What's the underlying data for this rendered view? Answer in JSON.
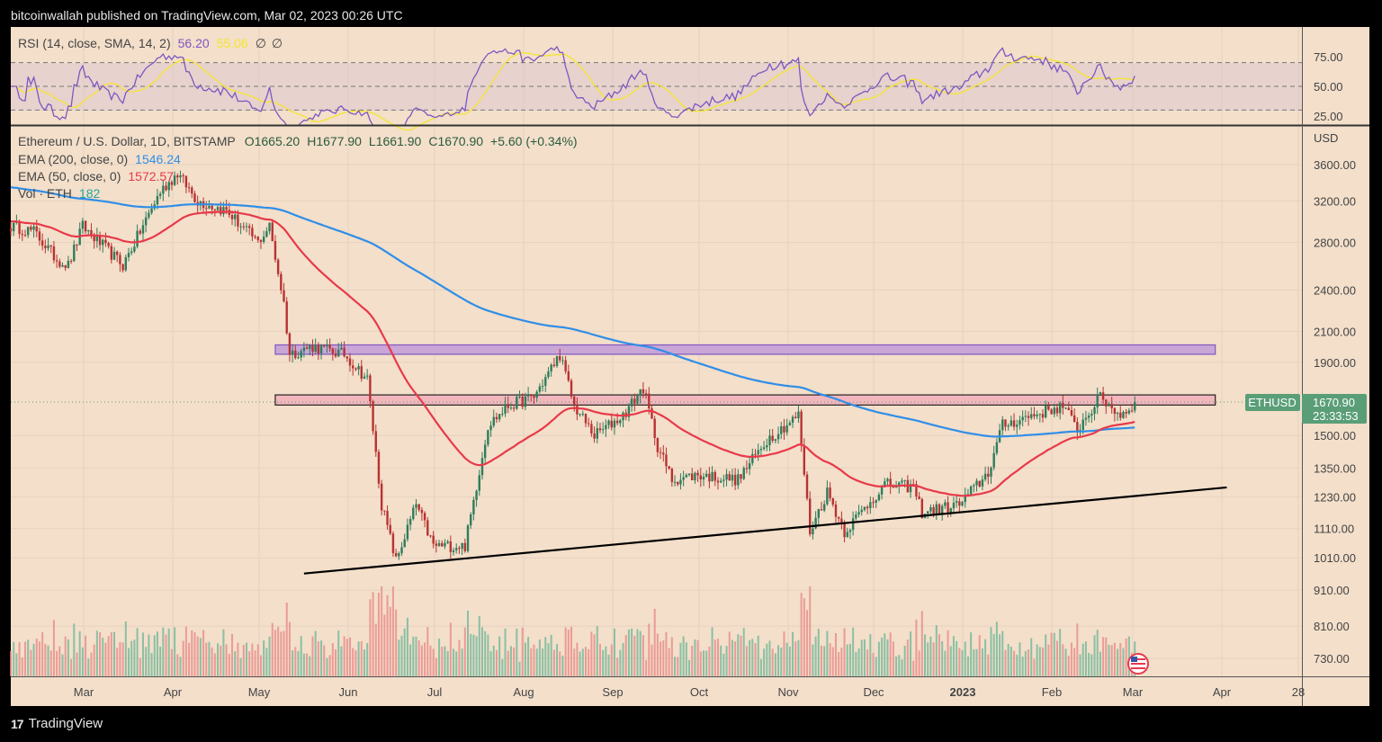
{
  "header": {
    "published": "bitcoinwallah published on TradingView.com, Mar 02, 2023 00:26 UTC"
  },
  "footer": {
    "brand": "TradingView"
  },
  "colors": {
    "background": "#f3dfca",
    "up": "#2e7d5b",
    "down": "#b83232",
    "ema200": "#2f8ee8",
    "ema50": "#e8394a",
    "rsi": "#7e57c2",
    "rsi_sma": "#f5e52e",
    "resistance_zone": "#c9a6d6",
    "support_zone": "#f2b7bd",
    "label_green": "#5a9e78"
  },
  "chart_data": [
    {
      "type": "line",
      "pane": "RSI",
      "legend": {
        "title": "RSI (14, close, SMA, 14, 2)",
        "rsi_value": "56.20",
        "sma_value": "55.06",
        "extra1": "∅",
        "extra2": "∅"
      },
      "y_ticks": [
        "75.00",
        "50.00",
        "25.00"
      ],
      "ylim": [
        17,
        95
      ],
      "bands": [
        30,
        50,
        70
      ]
    },
    {
      "type": "candlestick",
      "pane": "price",
      "legend": {
        "symbol": "Ethereum / U.S. Dollar, 1D, BITSTAMP",
        "open": "O1665.20",
        "high": "H1677.90",
        "low": "L1661.90",
        "close": "C1670.90",
        "change": "+5.60 (+0.34%)",
        "ema200_label": "EMA (200, close, 0)",
        "ema200_value": "1546.24",
        "ema50_label": "EMA (50, close, 0)",
        "ema50_value": "1572.57",
        "vol_label": "Vol · ETH",
        "vol_value": "182"
      },
      "y_scale": "log",
      "y_unit": "USD",
      "y_ticks": [
        "3600.00",
        "3200.00",
        "2800.00",
        "2400.00",
        "2100.00",
        "1900.00",
        "1500.00",
        "1350.00",
        "1230.00",
        "1110.00",
        "1010.00",
        "910.00",
        "810.00",
        "730.00"
      ],
      "x_ticks": [
        "Mar",
        "Apr",
        "May",
        "Jun",
        "Jul",
        "Aug",
        "Sep",
        "Oct",
        "Nov",
        "Dec",
        "2023",
        "Feb",
        "Mar",
        "Apr",
        "28"
      ],
      "last_price_label": {
        "symbol": "ETHUSD",
        "price": "1670.90",
        "countdown": "23:33:53"
      },
      "approx_close_anchors": [
        [
          "2022-02-04",
          2950
        ],
        [
          "2022-02-12",
          2900
        ],
        [
          "2022-02-20",
          2650
        ],
        [
          "2022-02-24",
          2600
        ],
        [
          "2022-03-01",
          2950
        ],
        [
          "2022-03-15",
          2600
        ],
        [
          "2022-03-28",
          3300
        ],
        [
          "2022-04-03",
          3500
        ],
        [
          "2022-04-10",
          3200
        ],
        [
          "2022-04-20",
          3100
        ],
        [
          "2022-05-01",
          2800
        ],
        [
          "2022-05-05",
          2950
        ],
        [
          "2022-05-10",
          2300
        ],
        [
          "2022-05-12",
          1950
        ],
        [
          "2022-05-20",
          2000
        ],
        [
          "2022-05-31",
          1950
        ],
        [
          "2022-06-08",
          1800
        ],
        [
          "2022-06-13",
          1200
        ],
        [
          "2022-06-18",
          1000
        ],
        [
          "2022-06-25",
          1200
        ],
        [
          "2022-07-01",
          1050
        ],
        [
          "2022-07-12",
          1050
        ],
        [
          "2022-07-20",
          1550
        ],
        [
          "2022-07-27",
          1650
        ],
        [
          "2022-08-05",
          1700
        ],
        [
          "2022-08-14",
          1950
        ],
        [
          "2022-08-19",
          1650
        ],
        [
          "2022-08-26",
          1500
        ],
        [
          "2022-09-05",
          1600
        ],
        [
          "2022-09-12",
          1750
        ],
        [
          "2022-09-17",
          1450
        ],
        [
          "2022-09-22",
          1300
        ],
        [
          "2022-10-01",
          1320
        ],
        [
          "2022-10-15",
          1300
        ],
        [
          "2022-10-25",
          1480
        ],
        [
          "2022-11-05",
          1600
        ],
        [
          "2022-11-09",
          1100
        ],
        [
          "2022-11-15",
          1250
        ],
        [
          "2022-11-21",
          1100
        ],
        [
          "2022-12-05",
          1280
        ],
        [
          "2022-12-15",
          1270
        ],
        [
          "2022-12-18",
          1170
        ],
        [
          "2022-12-31",
          1200
        ],
        [
          "2023-01-10",
          1330
        ],
        [
          "2023-01-15",
          1550
        ],
        [
          "2023-01-25",
          1600
        ],
        [
          "2023-02-05",
          1650
        ],
        [
          "2023-02-10",
          1530
        ],
        [
          "2023-02-18",
          1700
        ],
        [
          "2023-02-25",
          1600
        ],
        [
          "2023-03-02",
          1670.9
        ]
      ],
      "zones": [
        {
          "name": "resistance",
          "from": "2022-05-07",
          "to": "2023-03-30",
          "low": 1950,
          "high": 2010
        },
        {
          "name": "support",
          "from": "2022-05-07",
          "to": "2023-03-30",
          "low": 1655,
          "high": 1710
        }
      ],
      "trendline": {
        "start": [
          "2022-05-17",
          960
        ],
        "end": [
          "2023-04-03",
          1268
        ]
      }
    }
  ]
}
